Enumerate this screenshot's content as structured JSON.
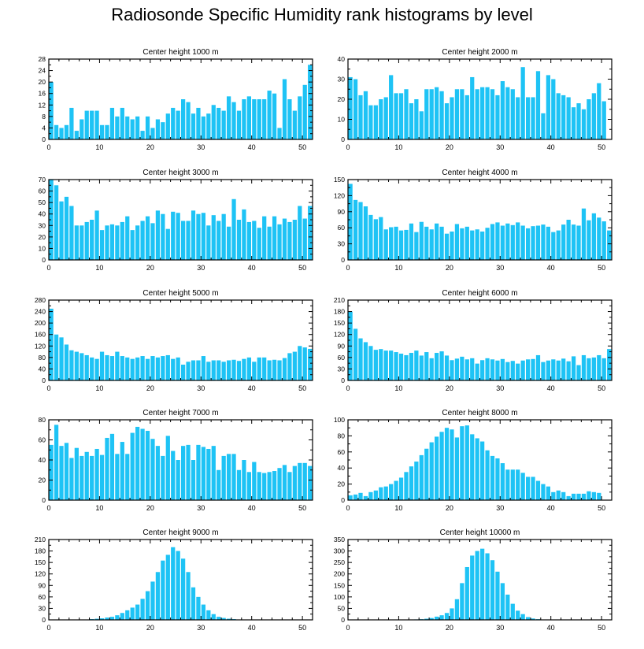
{
  "page": {
    "title": "Radiosonde Specific Humidity rank histograms by level"
  },
  "chart_data": [
    {
      "type": "bar",
      "title": "Center height 1000 m",
      "ylim": [
        0,
        28
      ],
      "yticks": [
        0,
        4,
        8,
        12,
        16,
        20,
        24,
        28
      ],
      "xticks": [
        0,
        10,
        20,
        30,
        40,
        50
      ],
      "xlim": [
        0,
        52
      ],
      "color": "#1ec3f5",
      "values": [
        20,
        5,
        4,
        5,
        11,
        3,
        7,
        10,
        10,
        10,
        5,
        5,
        11,
        8,
        11,
        8,
        7,
        8,
        3,
        8,
        4,
        7,
        6,
        9,
        11,
        10,
        14,
        13,
        9,
        11,
        8,
        9,
        12,
        11,
        10,
        15,
        13,
        10,
        14,
        15,
        14,
        14,
        14,
        17,
        16,
        4,
        21,
        14,
        10,
        15,
        19,
        26
      ]
    },
    {
      "type": "bar",
      "title": "Center height 2000 m",
      "ylim": [
        0,
        40
      ],
      "yticks": [
        0,
        10,
        20,
        30,
        40
      ],
      "xticks": [
        0,
        10,
        20,
        30,
        40,
        50
      ],
      "xlim": [
        0,
        52
      ],
      "color": "#1ec3f5",
      "values": [
        31,
        30,
        22,
        24,
        17,
        17,
        20,
        21,
        32,
        23,
        23,
        25,
        18,
        20,
        14,
        25,
        25,
        26,
        24,
        18,
        21,
        25,
        25,
        22,
        31,
        25,
        26,
        26,
        25,
        22,
        29,
        26,
        25,
        21,
        36,
        21,
        21,
        34,
        13,
        32,
        30,
        23,
        22,
        21,
        16,
        18,
        15,
        20,
        23,
        28,
        19
      ]
    },
    {
      "type": "bar",
      "title": "Center height 3000 m",
      "ylim": [
        0,
        70
      ],
      "yticks": [
        0,
        10,
        20,
        30,
        40,
        50,
        60,
        70
      ],
      "xticks": [
        0,
        10,
        20,
        30,
        40,
        50
      ],
      "xlim": [
        0,
        52
      ],
      "color": "#1ec3f5",
      "values": [
        70,
        65,
        51,
        55,
        47,
        30,
        30,
        33,
        35,
        43,
        26,
        30,
        31,
        30,
        33,
        38,
        26,
        30,
        34,
        38,
        32,
        43,
        40,
        27,
        42,
        41,
        34,
        34,
        43,
        40,
        41,
        30,
        39,
        34,
        40,
        29,
        53,
        35,
        44,
        33,
        34,
        28,
        38,
        29,
        38,
        31,
        36,
        33,
        35,
        47,
        36,
        47
      ]
    },
    {
      "type": "bar",
      "title": "Center height 4000 m",
      "ylim": [
        0,
        150
      ],
      "yticks": [
        0,
        30,
        60,
        90,
        120,
        150
      ],
      "xticks": [
        0,
        10,
        20,
        30,
        40,
        50
      ],
      "xlim": [
        0,
        52
      ],
      "color": "#1ec3f5",
      "values": [
        142,
        112,
        108,
        100,
        84,
        76,
        80,
        57,
        61,
        62,
        55,
        56,
        68,
        52,
        71,
        62,
        57,
        68,
        62,
        49,
        53,
        67,
        59,
        62,
        55,
        57,
        53,
        60,
        67,
        70,
        64,
        68,
        65,
        70,
        64,
        59,
        63,
        64,
        66,
        62,
        52,
        55,
        66,
        75,
        66,
        64,
        96,
        74,
        87,
        79,
        72,
        55
      ]
    },
    {
      "type": "bar",
      "title": "Center height 5000 m",
      "ylim": [
        0,
        280
      ],
      "yticks": [
        0,
        40,
        80,
        120,
        160,
        200,
        240,
        280
      ],
      "xticks": [
        0,
        10,
        20,
        30,
        40,
        50
      ],
      "xlim": [
        0,
        52
      ],
      "color": "#1ec3f5",
      "values": [
        250,
        160,
        150,
        125,
        105,
        100,
        95,
        88,
        80,
        75,
        100,
        88,
        85,
        100,
        85,
        80,
        75,
        80,
        85,
        75,
        85,
        80,
        85,
        88,
        75,
        80,
        55,
        65,
        70,
        70,
        85,
        65,
        70,
        70,
        65,
        70,
        72,
        68,
        75,
        80,
        65,
        80,
        80,
        70,
        72,
        70,
        78,
        95,
        100,
        120,
        115,
        110
      ]
    },
    {
      "type": "bar",
      "title": "Center height 6000 m",
      "ylim": [
        0,
        210
      ],
      "yticks": [
        0,
        30,
        60,
        90,
        120,
        150,
        180,
        210
      ],
      "xticks": [
        0,
        10,
        20,
        30,
        40,
        50
      ],
      "xlim": [
        0,
        52
      ],
      "color": "#1ec3f5",
      "values": [
        180,
        135,
        110,
        100,
        90,
        80,
        82,
        78,
        78,
        74,
        70,
        66,
        72,
        78,
        65,
        74,
        58,
        72,
        76,
        65,
        53,
        57,
        62,
        55,
        58,
        44,
        53,
        58,
        55,
        52,
        56,
        48,
        51,
        44,
        52,
        55,
        56,
        66,
        48,
        52,
        55,
        52,
        57,
        50,
        63,
        40,
        66,
        58,
        60,
        66,
        58,
        82
      ]
    },
    {
      "type": "bar",
      "title": "Center height 7000 m",
      "ylim": [
        0,
        80
      ],
      "yticks": [
        0,
        20,
        40,
        60,
        80
      ],
      "xticks": [
        0,
        10,
        20,
        30,
        40,
        50
      ],
      "xlim": [
        0,
        52
      ],
      "color": "#1ec3f5",
      "values": [
        55,
        75,
        54,
        57,
        42,
        52,
        44,
        48,
        44,
        51,
        45,
        62,
        66,
        46,
        58,
        46,
        67,
        73,
        71,
        69,
        61,
        54,
        44,
        64,
        49,
        40,
        54,
        55,
        40,
        55,
        53,
        51,
        54,
        30,
        44,
        46,
        46,
        30,
        40,
        28,
        38,
        28,
        27,
        28,
        29,
        32,
        35,
        28,
        34,
        37,
        37,
        34
      ]
    },
    {
      "type": "bar",
      "title": "Center height 8000 m",
      "ylim": [
        0,
        100
      ],
      "yticks": [
        0,
        20,
        40,
        60,
        80,
        100
      ],
      "xticks": [
        0,
        10,
        20,
        30,
        40,
        50
      ],
      "xlim": [
        0,
        52
      ],
      "color": "#1ec3f5",
      "values": [
        6,
        7,
        9,
        5,
        10,
        12,
        16,
        17,
        20,
        24,
        28,
        35,
        42,
        48,
        56,
        64,
        72,
        79,
        85,
        90,
        88,
        78,
        92,
        93,
        82,
        77,
        73,
        62,
        55,
        52,
        46,
        38,
        38,
        38,
        34,
        29,
        29,
        24,
        20,
        17,
        10,
        12,
        10,
        5,
        8,
        8,
        8,
        11,
        10,
        9
      ]
    },
    {
      "type": "bar",
      "title": "Center height 9000 m",
      "ylim": [
        0,
        210
      ],
      "yticks": [
        0,
        30,
        60,
        90,
        120,
        150,
        180,
        210
      ],
      "xticks": [
        0,
        10,
        20,
        30,
        40,
        50
      ],
      "xlim": [
        0,
        52
      ],
      "color": "#1ec3f5",
      "values": [
        0,
        0,
        0,
        0,
        0,
        1,
        1,
        1,
        2,
        3,
        4,
        6,
        8,
        12,
        18,
        25,
        32,
        40,
        55,
        75,
        100,
        125,
        155,
        170,
        190,
        180,
        160,
        125,
        85,
        60,
        40,
        25,
        15,
        8,
        5,
        3,
        2,
        1,
        1,
        0,
        0,
        0,
        0,
        0,
        0,
        0,
        0,
        0,
        0,
        0,
        0
      ]
    },
    {
      "type": "bar",
      "title": "Center height 10000 m",
      "ylim": [
        0,
        350
      ],
      "yticks": [
        0,
        50,
        100,
        150,
        200,
        250,
        300,
        350
      ],
      "xticks": [
        0,
        10,
        20,
        30,
        40,
        50
      ],
      "xlim": [
        0,
        52
      ],
      "color": "#1ec3f5",
      "values": [
        0,
        0,
        0,
        0,
        0,
        0,
        0,
        0,
        0,
        0,
        0,
        0,
        1,
        2,
        3,
        5,
        8,
        14,
        20,
        30,
        50,
        90,
        160,
        230,
        280,
        300,
        310,
        290,
        260,
        210,
        160,
        110,
        70,
        40,
        25,
        12,
        6,
        3,
        1,
        1,
        0,
        0,
        0,
        0,
        0,
        0,
        0,
        0,
        0,
        0,
        0,
        0
      ]
    }
  ]
}
